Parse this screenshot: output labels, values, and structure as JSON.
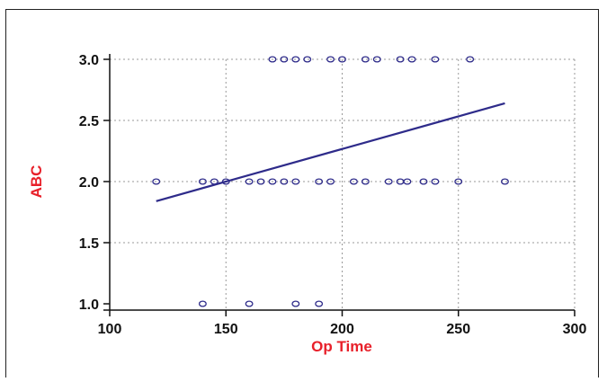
{
  "chart_data": {
    "type": "scatter",
    "title": "",
    "xlabel": "Op Time",
    "ylabel": "ABC",
    "xlim": [
      100,
      300
    ],
    "ylim": [
      1.0,
      3.0
    ],
    "x_ticks": [
      "100",
      "150",
      "200",
      "250",
      "300"
    ],
    "y_ticks": [
      "1.0",
      "1.5",
      "2.0",
      "2.5",
      "3.0"
    ],
    "grid": true,
    "colors": {
      "points": "#2e2b8a",
      "line": "#2e2b8a",
      "axis_title": "#e8202a"
    },
    "series": [
      {
        "kind": "points",
        "points": [
          [
            140,
            1.0
          ],
          [
            160,
            1.0
          ],
          [
            180,
            1.0
          ],
          [
            190,
            1.0
          ],
          [
            120,
            2.0
          ],
          [
            140,
            2.0
          ],
          [
            145,
            2.0
          ],
          [
            150,
            2.0
          ],
          [
            160,
            2.0
          ],
          [
            165,
            2.0
          ],
          [
            170,
            2.0
          ],
          [
            175,
            2.0
          ],
          [
            180,
            2.0
          ],
          [
            190,
            2.0
          ],
          [
            195,
            2.0
          ],
          [
            205,
            2.0
          ],
          [
            210,
            2.0
          ],
          [
            220,
            2.0
          ],
          [
            225,
            2.0
          ],
          [
            228,
            2.0
          ],
          [
            235,
            2.0
          ],
          [
            240,
            2.0
          ],
          [
            250,
            2.0
          ],
          [
            270,
            2.0
          ],
          [
            170,
            3.0
          ],
          [
            175,
            3.0
          ],
          [
            180,
            3.0
          ],
          [
            185,
            3.0
          ],
          [
            195,
            3.0
          ],
          [
            200,
            3.0
          ],
          [
            210,
            3.0
          ],
          [
            215,
            3.0
          ],
          [
            225,
            3.0
          ],
          [
            230,
            3.0
          ],
          [
            240,
            3.0
          ],
          [
            255,
            3.0
          ]
        ]
      },
      {
        "kind": "regression-line",
        "points": [
          [
            120,
            1.84
          ],
          [
            270,
            2.64
          ]
        ]
      }
    ]
  }
}
